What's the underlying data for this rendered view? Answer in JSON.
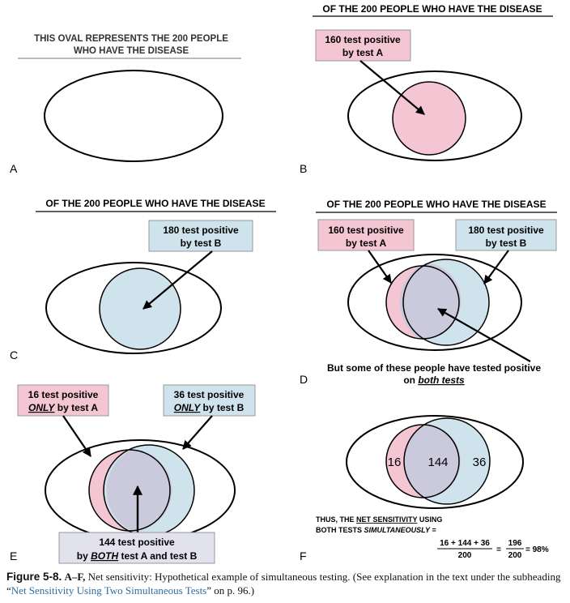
{
  "colors": {
    "pink": "#f4c5d2",
    "blue": "#cfe3ec",
    "overlap": "#cbcadc",
    "lavender_box": "#e2e1ee",
    "link": "#2d6da3"
  },
  "panels": {
    "A": {
      "letter": "A",
      "title_line1": "THIS OVAL REPRESENTS THE 200 PEOPLE",
      "title_line2": "WHO HAVE THE DISEASE"
    },
    "B": {
      "letter": "B",
      "title": "OF THE 200 PEOPLE WHO HAVE THE DISEASE",
      "box_line1": "160 test positive",
      "box_line2": "by test A"
    },
    "C": {
      "letter": "C",
      "title": "OF THE 200 PEOPLE WHO HAVE THE DISEASE",
      "box_line1": "180 test positive",
      "box_line2": "by test B"
    },
    "D": {
      "letter": "D",
      "title": "OF THE 200 PEOPLE WHO HAVE THE DISEASE",
      "boxA_line1": "160 test positive",
      "boxA_line2": "by test A",
      "boxB_line1": "180 test positive",
      "boxB_line2": "by test B",
      "note_line1": "But some of these people have tested positive",
      "note_line2_prefix": "on ",
      "note_line2_emph": "both tests"
    },
    "E": {
      "letter": "E",
      "boxA_line1": "16 test positive",
      "boxA_only": "ONLY",
      "boxA_line2_rest": " by test A",
      "boxB_line1": "36 test positive",
      "boxB_only": "ONLY",
      "boxB_line2_rest": " by test B",
      "bottom_line1": "144 test positive",
      "bottom_prefix": "by ",
      "bottom_both": "BOTH",
      "bottom_rest": " test A and test B"
    },
    "F": {
      "letter": "F",
      "left_value": "16",
      "middle_value": "144",
      "right_value": "36",
      "thus_prefix": "THUS, THE ",
      "thus_emph": "NET SENSITIVITY",
      "thus_suffix": " USING",
      "line2_prefix": "BOTH TESTS ",
      "line2_emph": "SIMULTANEOUSLY",
      "line2_suffix": " =",
      "formula_numerator": "16 + 144 + 36",
      "formula_denominator": "200",
      "equals": "=",
      "result_numerator": "196",
      "result_denominator": "200",
      "result": "= 98%"
    }
  },
  "caption": {
    "label": "Figure 5-8.",
    "range": "A–F,",
    "text": " Net sensitivity: Hypothetical example of simultaneous testing. (See explanation in the text under the subheading",
    "quote_open": "“",
    "link": "Net Sensitivity Using Two Simultaneous Tests",
    "text2": "” on p. 96.)"
  }
}
